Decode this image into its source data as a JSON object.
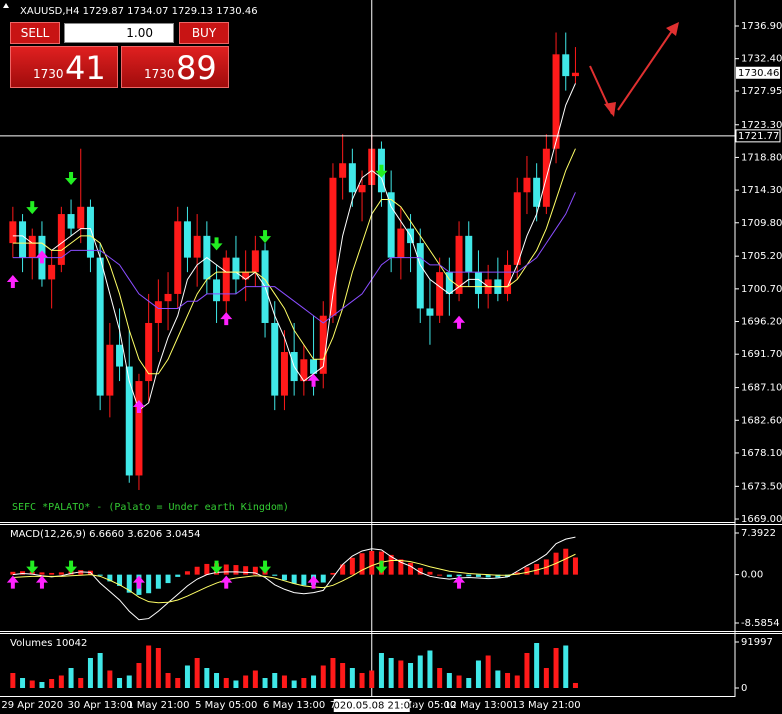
{
  "trade_panel": {
    "sell_label": "SELL",
    "buy_label": "BUY",
    "lot": "1.00",
    "sell_price_big": "1730",
    "sell_price_pips": "41",
    "buy_price_big": "1730",
    "buy_price_pips": "89"
  },
  "chart_data": [
    {
      "type": "candlestick",
      "title": "XAUUSD,H4 1729.87 1734.07 1729.13 1730.46",
      "annotation": "SEFC *PALATO* - (Palato = Under earth Kingdom)",
      "categories": [
        null,
        null,
        "29 Apr 2020",
        null,
        null,
        null,
        null,
        null,
        null,
        "30 Apr 13:00",
        null,
        null,
        null,
        null,
        null,
        "1 May 21:00",
        null,
        null,
        null,
        null,
        null,
        null,
        "5 May 05:00",
        null,
        null,
        null,
        null,
        null,
        null,
        "6 May 13:00",
        null,
        null,
        null,
        "7",
        null,
        null,
        null,
        null,
        null,
        null,
        null,
        null,
        null,
        "May 05:00",
        null,
        null,
        null,
        null,
        "12 May 13:00",
        null,
        null,
        null,
        null,
        null,
        null,
        "13 May 21:00",
        null,
        null,
        null
      ],
      "open": [
        1707,
        1710,
        1705,
        1708,
        1702,
        1704,
        1711,
        1709,
        1712,
        1705,
        1686,
        1693,
        1690,
        1675,
        1688,
        1696,
        1699,
        1700,
        1710,
        1705,
        1708,
        1702,
        1699,
        1705,
        1702,
        1703,
        1706,
        1696,
        1686,
        1692,
        1688,
        1691,
        1689,
        1697,
        1716,
        1718,
        1714,
        1715,
        1720,
        1714,
        1705,
        1709,
        1707,
        1698,
        1697,
        1703,
        1700,
        1708,
        1703,
        1700,
        1702,
        1700,
        1704,
        1714,
        1716,
        1712,
        1720,
        1733,
        1730
      ],
      "high": [
        1712,
        1711,
        1709,
        1710,
        1706,
        1712,
        1713,
        1720,
        1713,
        1707,
        1696,
        1698,
        1695,
        1689,
        1700,
        1702,
        1703,
        1712,
        1712,
        1711,
        1710,
        1704,
        1706,
        1708,
        1706,
        1708,
        1707,
        1699,
        1695,
        1696,
        1693,
        1697,
        1699,
        1718,
        1722,
        1720,
        1717,
        1722,
        1721,
        1717,
        1712,
        1711,
        1709,
        1702,
        1705,
        1705,
        1710,
        1710,
        1706,
        1704,
        1705,
        1706,
        1716,
        1719,
        1718,
        1722,
        1736,
        1736,
        1734
      ],
      "low": [
        1705,
        1703,
        1702,
        1701,
        1698,
        1703,
        1708,
        1707,
        1703,
        1684,
        1683,
        1688,
        1674,
        1673,
        1685,
        1692,
        1695,
        1698,
        1703,
        1701,
        1700,
        1696,
        1697,
        1700,
        1699,
        1701,
        1694,
        1684,
        1684,
        1686,
        1686,
        1686,
        1687,
        1696,
        1713,
        1712,
        1710,
        1712,
        1712,
        1703,
        1702,
        1703,
        1696,
        1693,
        1696,
        1697,
        1699,
        1701,
        1698,
        1698,
        1699,
        1699,
        1702,
        1711,
        1710,
        1711,
        1718,
        1728,
        1729
      ],
      "close": [
        1710,
        1705,
        1708,
        1702,
        1704,
        1711,
        1709,
        1712,
        1705,
        1686,
        1693,
        1690,
        1675,
        1688,
        1696,
        1699,
        1700,
        1710,
        1705,
        1708,
        1702,
        1699,
        1705,
        1702,
        1703,
        1706,
        1696,
        1686,
        1692,
        1688,
        1691,
        1689,
        1697,
        1716,
        1718,
        1714,
        1715,
        1720,
        1714,
        1705,
        1709,
        1707,
        1698,
        1697,
        1703,
        1700,
        1708,
        1703,
        1700,
        1702,
        1700,
        1704,
        1714,
        1716,
        1712,
        1720,
        1733,
        1730,
        1730.46
      ],
      "bull_color": "#ff1a1a",
      "bear_color": "#40e8e8",
      "lines": [
        {
          "color": "#ffffff",
          "values": [
            1708,
            1708,
            1707,
            1707,
            1706,
            1707,
            1708,
            1709,
            1709,
            1705,
            1700,
            1695,
            1688,
            1684,
            1685,
            1690,
            1694,
            1697,
            1702,
            1704,
            1705,
            1704,
            1703,
            1703,
            1702,
            1703,
            1701,
            1697,
            1694,
            1690,
            1688,
            1689,
            1690,
            1700,
            1708,
            1713,
            1716,
            1717,
            1716,
            1712,
            1710,
            1708,
            1704,
            1702,
            1701,
            1700,
            1701,
            1702,
            1702,
            1701,
            1701,
            1701,
            1704,
            1708,
            1711,
            1716,
            1721,
            1726,
            1729
          ]
        },
        {
          "color": "#ffff66",
          "values": [
            1707,
            1707,
            1707,
            1707,
            1706,
            1706,
            1707,
            1708,
            1708,
            1707,
            1704,
            1700,
            1695,
            1691,
            1689,
            1689,
            1691,
            1694,
            1697,
            1700,
            1702,
            1703,
            1703,
            1703,
            1703,
            1703,
            1702,
            1700,
            1698,
            1695,
            1693,
            1691,
            1691,
            1694,
            1698,
            1703,
            1707,
            1711,
            1713,
            1713,
            1712,
            1710,
            1708,
            1706,
            1704,
            1702,
            1701,
            1701,
            1701,
            1701,
            1701,
            1701,
            1702,
            1704,
            1706,
            1709,
            1713,
            1717,
            1720
          ]
        },
        {
          "color": "#8a4dff",
          "values": [
            1705,
            1705,
            1705,
            1705,
            1705,
            1705,
            1706,
            1706,
            1706,
            1706,
            1705,
            1704,
            1702,
            1700,
            1699,
            1698,
            1698,
            1698,
            1699,
            1699,
            1700,
            1700,
            1700,
            1700,
            1701,
            1701,
            1701,
            1701,
            1700,
            1699,
            1698,
            1697,
            1696,
            1697,
            1698,
            1699,
            1700,
            1702,
            1704,
            1705,
            1705,
            1705,
            1705,
            1704,
            1704,
            1703,
            1703,
            1703,
            1703,
            1703,
            1703,
            1703,
            1703,
            1704,
            1705,
            1707,
            1709,
            1711,
            1714
          ]
        }
      ],
      "signals": [
        {
          "type": "sell",
          "index": 2,
          "price": 1711
        },
        {
          "type": "sell",
          "index": 6,
          "price": 1715
        },
        {
          "type": "sell",
          "index": 21,
          "price": 1706
        },
        {
          "type": "sell",
          "index": 26,
          "price": 1707
        },
        {
          "type": "sell",
          "index": 38,
          "price": 1716
        },
        {
          "type": "buy",
          "index": 0,
          "price": 1702.6
        },
        {
          "type": "buy",
          "index": 3,
          "price": 1706
        },
        {
          "type": "buy",
          "index": 13,
          "price": 1685.4
        },
        {
          "type": "buy",
          "index": 22,
          "price": 1697.5
        },
        {
          "type": "buy",
          "index": 31,
          "price": 1689
        },
        {
          "type": "buy",
          "index": 46,
          "price": 1697
        }
      ],
      "sell_color": "#22ee22",
      "buy_color": "#ff22ff",
      "current_price": 1730.46,
      "crosshair": {
        "index": 37,
        "time": "2020.05.08 21:00",
        "price": 1721.77
      },
      "ylim": [
        1668.59,
        1739.38
      ],
      "yticks": [
        {
          "value": 1736.9,
          "label": "1736.90"
        },
        {
          "value": 1732.4,
          "label": "1732.40"
        },
        {
          "value": 1727.95,
          "label": "1727.95"
        },
        {
          "value": 1723.3,
          "label": "1723.30"
        },
        {
          "value": 1718.8,
          "label": "1718.80"
        },
        {
          "value": 1714.3,
          "label": "1714.30"
        },
        {
          "value": 1709.8,
          "label": "1709.80"
        },
        {
          "value": 1705.2,
          "label": "1705.20"
        },
        {
          "value": 1700.7,
          "label": "1700.70"
        },
        {
          "value": 1696.2,
          "label": "1696.20"
        },
        {
          "value": 1691.7,
          "label": "1691.70"
        },
        {
          "value": 1687.1,
          "label": "1687.10"
        },
        {
          "value": 1682.6,
          "label": "1682.60"
        },
        {
          "value": 1678.1,
          "label": "1678.10"
        },
        {
          "value": 1673.5,
          "label": "1673.50"
        },
        {
          "value": 1669,
          "label": "1669.00"
        }
      ]
    },
    {
      "type": "macd",
      "title": "MACD(12,26,9) 6.6660 3.6206 3.0454",
      "values": [
        0.5,
        0.6,
        0.5,
        0.4,
        0.3,
        0.4,
        0.6,
        0.8,
        0.7,
        -0.2,
        -1.2,
        -2,
        -3.2,
        -3.6,
        -3.3,
        -2.5,
        -1.5,
        -0.4,
        0.6,
        1.4,
        1.9,
        2,
        1.8,
        1.7,
        1.5,
        1.4,
        0.9,
        -0.2,
        -1,
        -1.6,
        -1.9,
        -1.8,
        -1.4,
        0.3,
        1.8,
        3,
        3.8,
        4.2,
        4.1,
        3.5,
        2.7,
        2.1,
        1.2,
        0.5,
        0,
        -0.4,
        -0.3,
        -0.3,
        -0.4,
        -0.5,
        -0.5,
        -0.4,
        0.4,
        1.3,
        1.9,
        2.7,
        3.9,
        4.6,
        3.0454
      ],
      "up_color": "#ff1a1a",
      "down_color": "#40e8e8",
      "lines": [
        {
          "color": "#ffffff",
          "values": [
            0,
            0.2,
            0.1,
            -0.2,
            -0.4,
            -0.2,
            0.2,
            0.5,
            0.4,
            -1.5,
            -3,
            -4.5,
            -6.5,
            -8,
            -7.8,
            -6.5,
            -5,
            -3.5,
            -2,
            -0.8,
            0,
            0.4,
            0.5,
            0.5,
            0.4,
            0.3,
            -0.5,
            -1.8,
            -2.6,
            -3.2,
            -3.4,
            -3.2,
            -2.8,
            -0.5,
            1.8,
            3.3,
            4.2,
            4.6,
            4.4,
            3.2,
            2.2,
            1.5,
            0.4,
            -0.3,
            -0.6,
            -0.8,
            -0.6,
            -0.5,
            -0.6,
            -0.7,
            -0.6,
            -0.4,
            0.6,
            1.6,
            2.5,
            3.6,
            5.5,
            6.3,
            6.666
          ]
        },
        {
          "color": "#ffff66",
          "values": [
            -0.5,
            -0.4,
            -0.3,
            -0.3,
            -0.3,
            -0.3,
            -0.2,
            -0.1,
            0,
            -0.3,
            -1,
            -1.8,
            -2.8,
            -4,
            -4.8,
            -5,
            -4.9,
            -4.5,
            -3.8,
            -3,
            -2.2,
            -1.5,
            -0.9,
            -0.6,
            -0.4,
            -0.2,
            -0.3,
            -0.6,
            -1.1,
            -1.6,
            -2,
            -2.2,
            -2.3,
            -1.9,
            -1.1,
            -0.2,
            0.8,
            1.6,
            2.2,
            2.5,
            2.5,
            2.3,
            1.9,
            1.4,
            1,
            0.6,
            0.4,
            0.2,
            0.1,
            0,
            -0.1,
            -0.1,
            0.1,
            0.4,
            0.8,
            1.3,
            2,
            2.8,
            3.6206
          ]
        }
      ],
      "ylim": [
        -9.83,
        8.99
      ],
      "yticks": [
        7.3922,
        {
          "value": 0,
          "label": "0.00"
        },
        -8.5854
      ]
    },
    {
      "type": "volume",
      "title": "Volumes 10042",
      "values": [
        30000,
        20000,
        15000,
        12000,
        18000,
        25000,
        40000,
        20000,
        60000,
        70000,
        35000,
        20000,
        25000,
        50000,
        85000,
        80000,
        30000,
        20000,
        45000,
        60000,
        40000,
        30000,
        20000,
        15000,
        25000,
        35000,
        20000,
        30000,
        25000,
        15000,
        20000,
        25000,
        45000,
        60000,
        50000,
        40000,
        30000,
        35000,
        70000,
        60000,
        55000,
        50000,
        65000,
        75000,
        40000,
        30000,
        25000,
        20000,
        55000,
        65000,
        35000,
        30000,
        25000,
        70000,
        90000,
        40000,
        80000,
        85000,
        10042
      ],
      "ylim": [
        -16000,
        108000
      ],
      "yticks": [
        91997,
        0
      ]
    }
  ]
}
